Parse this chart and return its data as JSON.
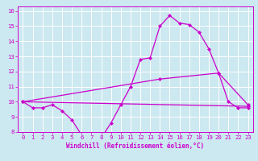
{
  "xlabel": "Windchill (Refroidissement éolien,°C)",
  "bg_color": "#cce8f0",
  "grid_color": "#ffffff",
  "line_color": "#cc00cc",
  "xlim": [
    -0.5,
    23.5
  ],
  "ylim": [
    8,
    16.3
  ],
  "xticks": [
    0,
    1,
    2,
    3,
    4,
    5,
    6,
    7,
    8,
    9,
    10,
    11,
    12,
    13,
    14,
    15,
    16,
    17,
    18,
    19,
    20,
    21,
    22,
    23
  ],
  "yticks": [
    8,
    9,
    10,
    11,
    12,
    13,
    14,
    15,
    16
  ],
  "line1_x": [
    0,
    1,
    2,
    3,
    4,
    5,
    6,
    7,
    8,
    9,
    10,
    11,
    12,
    13,
    14,
    15,
    16,
    17,
    18,
    19,
    20,
    21,
    22,
    23
  ],
  "line1_y": [
    10.0,
    9.6,
    9.6,
    9.8,
    9.4,
    8.8,
    7.8,
    7.6,
    7.6,
    8.6,
    9.8,
    11.0,
    12.8,
    12.9,
    15.0,
    15.7,
    15.2,
    15.1,
    14.6,
    13.5,
    11.9,
    10.0,
    9.6,
    9.6
  ],
  "line2_x": [
    0,
    23
  ],
  "line2_y": [
    10.0,
    9.7
  ],
  "line3_x": [
    0,
    14,
    20,
    23
  ],
  "line3_y": [
    10.0,
    11.5,
    11.9,
    9.8
  ],
  "marker_size": 2.5,
  "line_width": 0.9,
  "tick_fontsize": 5.2,
  "xlabel_fontsize": 5.5
}
